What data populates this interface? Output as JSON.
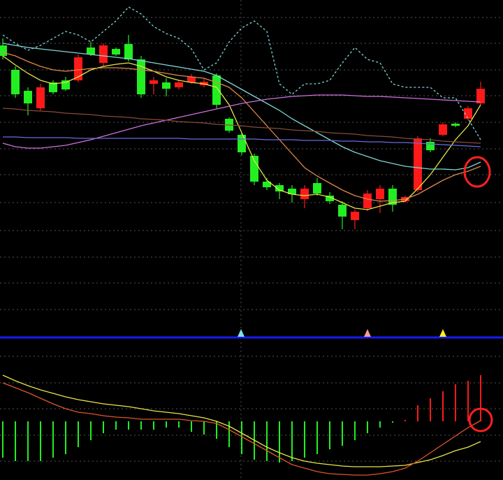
{
  "chart_data": [
    {
      "type": "candlestick",
      "ylim": [
        0,
        480
      ],
      "up_color": "#ff1a1a",
      "down_color": "#22ee22",
      "open": [
        415,
        380,
        350,
        325,
        362,
        365,
        365,
        412,
        390,
        410,
        417,
        395,
        360,
        362,
        355,
        362,
        358,
        372,
        310,
        287,
        257,
        220,
        215,
        210,
        195,
        218,
        200,
        187,
        165,
        182,
        195,
        210,
        192,
        208,
        277,
        287,
        303,
        310,
        332
      ],
      "high": [
        425,
        385,
        355,
        360,
        365,
        370,
        402,
        420,
        418,
        412,
        430,
        400,
        370,
        368,
        365,
        374,
        368,
        375,
        312,
        290,
        260,
        225,
        218,
        215,
        215,
        225,
        205,
        192,
        180,
        208,
        215,
        215,
        200,
        285,
        282,
        305,
        305,
        328,
        363
      ],
      "low": [
        395,
        340,
        315,
        322,
        345,
        350,
        362,
        400,
        385,
        400,
        392,
        340,
        345,
        342,
        352,
        360,
        355,
        325,
        290,
        258,
        215,
        208,
        195,
        190,
        182,
        200,
        188,
        152,
        152,
        178,
        175,
        177,
        190,
        205,
        262,
        285,
        298,
        308,
        330
      ],
      "close": [
        400,
        345,
        332,
        355,
        348,
        352,
        398,
        402,
        415,
        402,
        395,
        345,
        365,
        353,
        362,
        370,
        363,
        330,
        293,
        262,
        220,
        212,
        206,
        202,
        210,
        203,
        192,
        170,
        177,
        203,
        210,
        187,
        198,
        282,
        265,
        302,
        300,
        325,
        353
      ],
      "series": [
        {
          "color": "#e6e64a",
          "values": [
            400,
            387,
            375,
            365,
            360,
            362,
            370,
            380,
            385,
            388,
            390,
            385,
            378,
            370,
            365,
            362,
            360,
            355,
            330,
            290,
            250,
            222,
            208,
            202,
            200,
            202,
            198,
            190,
            182,
            180,
            185,
            190,
            192,
            210,
            230,
            255,
            280,
            300,
            330
          ]
        },
        {
          "color": "#e0894a",
          "values": [
            405,
            400,
            392,
            385,
            380,
            378,
            380,
            382,
            383,
            383,
            382,
            380,
            378,
            375,
            372,
            370,
            368,
            362,
            355,
            340,
            320,
            300,
            280,
            260,
            240,
            228,
            218,
            208,
            200,
            195,
            192,
            193,
            195,
            202,
            212,
            222,
            230,
            235,
            242
          ]
        },
        {
          "color": "#7fd6d6",
          "values": [
            418,
            415,
            412,
            410,
            408,
            406,
            404,
            402,
            400,
            398,
            396,
            393,
            390,
            387,
            384,
            381,
            378,
            372,
            362,
            352,
            342,
            332,
            322,
            310,
            300,
            290,
            280,
            270,
            262,
            256,
            250,
            246,
            242,
            240,
            238,
            238,
            237,
            240,
            248
          ]
        },
        {
          "color": "#d070e0",
          "values": [
            275,
            270,
            268,
            268,
            270,
            272,
            276,
            280,
            285,
            290,
            295,
            300,
            304,
            308,
            312,
            316,
            320,
            324,
            328,
            332,
            335,
            338,
            340,
            342,
            343,
            344,
            344,
            344,
            343,
            342,
            342,
            341,
            340,
            339,
            338,
            337,
            336,
            335,
            334
          ]
        },
        {
          "color": "#8a4a3a",
          "values": [
            325,
            324,
            322,
            321,
            320,
            318,
            317,
            316,
            314,
            313,
            312,
            310,
            309,
            308,
            306,
            305,
            304,
            302,
            301,
            300,
            298,
            297,
            296,
            294,
            293,
            292,
            290,
            289,
            288,
            286,
            285,
            284,
            282,
            281,
            280,
            278,
            277,
            276,
            275
          ]
        },
        {
          "color": "#6a6adf",
          "values": [
            284,
            284,
            283,
            283,
            283,
            283,
            282,
            282,
            282,
            282,
            282,
            282,
            282,
            282,
            282,
            281,
            281,
            281,
            281,
            281,
            281,
            280,
            280,
            280,
            279,
            279,
            279,
            278,
            278,
            277,
            277,
            276,
            276,
            275,
            274,
            273,
            272,
            271,
            270
          ]
        },
        {
          "color": "#7fd6d6",
          "dashed": true,
          "values": [
            430,
            418,
            408,
            415,
            425,
            435,
            430,
            420,
            435,
            450,
            470,
            460,
            442,
            432,
            425,
            410,
            380,
            390,
            420,
            440,
            450,
            435,
            360,
            345,
            360,
            360,
            365,
            390,
            412,
            395,
            390,
            360,
            355,
            355,
            355,
            340,
            340,
            310,
            280
          ]
        }
      ]
    },
    {
      "type": "macd",
      "ylim": [
        -84,
        113
      ],
      "up_color": "#ff1a1a",
      "down_color": "#22ee22",
      "values": [
        -52,
        -57,
        -57,
        -57,
        -52,
        -47,
        -37,
        -27,
        -17,
        -12,
        -12,
        -12,
        -12,
        -9,
        -9,
        -15,
        -19,
        -25,
        -37,
        -47,
        -55,
        -57,
        -59,
        -57,
        -52,
        -47,
        -40,
        -35,
        -27,
        -17,
        -9,
        -2,
        2,
        23,
        33,
        43,
        53,
        58,
        66
      ],
      "series": [
        {
          "color": "#e6e64a",
          "values": [
            66,
            58,
            51,
            45,
            40,
            35,
            31,
            28,
            25,
            23,
            21,
            18,
            15,
            13,
            11,
            8,
            5,
            0,
            -7,
            -17,
            -27,
            -37,
            -45,
            -52,
            -57,
            -60,
            -62,
            -64,
            -65,
            -65,
            -65,
            -64,
            -63,
            -59,
            -55,
            -49,
            -42,
            -37,
            -29
          ]
        },
        {
          "color": "#e0552a",
          "values": [
            55,
            48,
            41,
            33,
            25,
            18,
            13,
            11,
            8,
            6,
            5,
            3,
            3,
            3,
            3,
            1,
            0,
            -3,
            -12,
            -22,
            -32,
            -42,
            -52,
            -62,
            -67,
            -72,
            -75,
            -76,
            -77,
            -77,
            -75,
            -72,
            -67,
            -57,
            -45,
            -33,
            -21,
            -9,
            1
          ]
        }
      ]
    }
  ]
}
